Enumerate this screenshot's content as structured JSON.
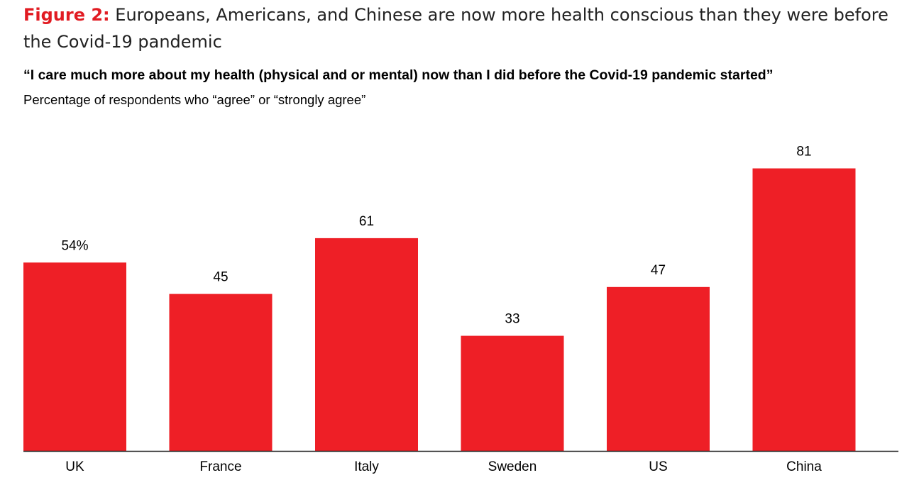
{
  "figure": {
    "label": "Figure 2:",
    "title": "Europeans, Americans, and Chinese are now more health conscious than they were before the Covid-19 pandemic",
    "subtitle": "“I care much more about my health (physical and or mental) now than I did before the Covid-19 pandemic started”",
    "note": "Percentage of respondents who “agree” or “strongly agree”"
  },
  "colors": {
    "accent": "#E11B22",
    "bar": "#EE1F26",
    "axis": "#222222",
    "text": "#000000"
  },
  "chart_data": {
    "type": "bar",
    "title": "“I care much more about my health (physical and or mental) now than I did before the Covid-19 pandemic started”",
    "subtitle": "Percentage of respondents who “agree” or “strongly agree”",
    "categories": [
      "UK",
      "France",
      "Italy",
      "Sweden",
      "US",
      "China"
    ],
    "values": [
      54,
      45,
      61,
      33,
      47,
      81
    ],
    "value_labels": [
      "54%",
      "45",
      "61",
      "33",
      "47",
      "81"
    ],
    "xlabel": "",
    "ylabel": "",
    "ylim": [
      0,
      90
    ],
    "grid": false,
    "legend": "none"
  }
}
